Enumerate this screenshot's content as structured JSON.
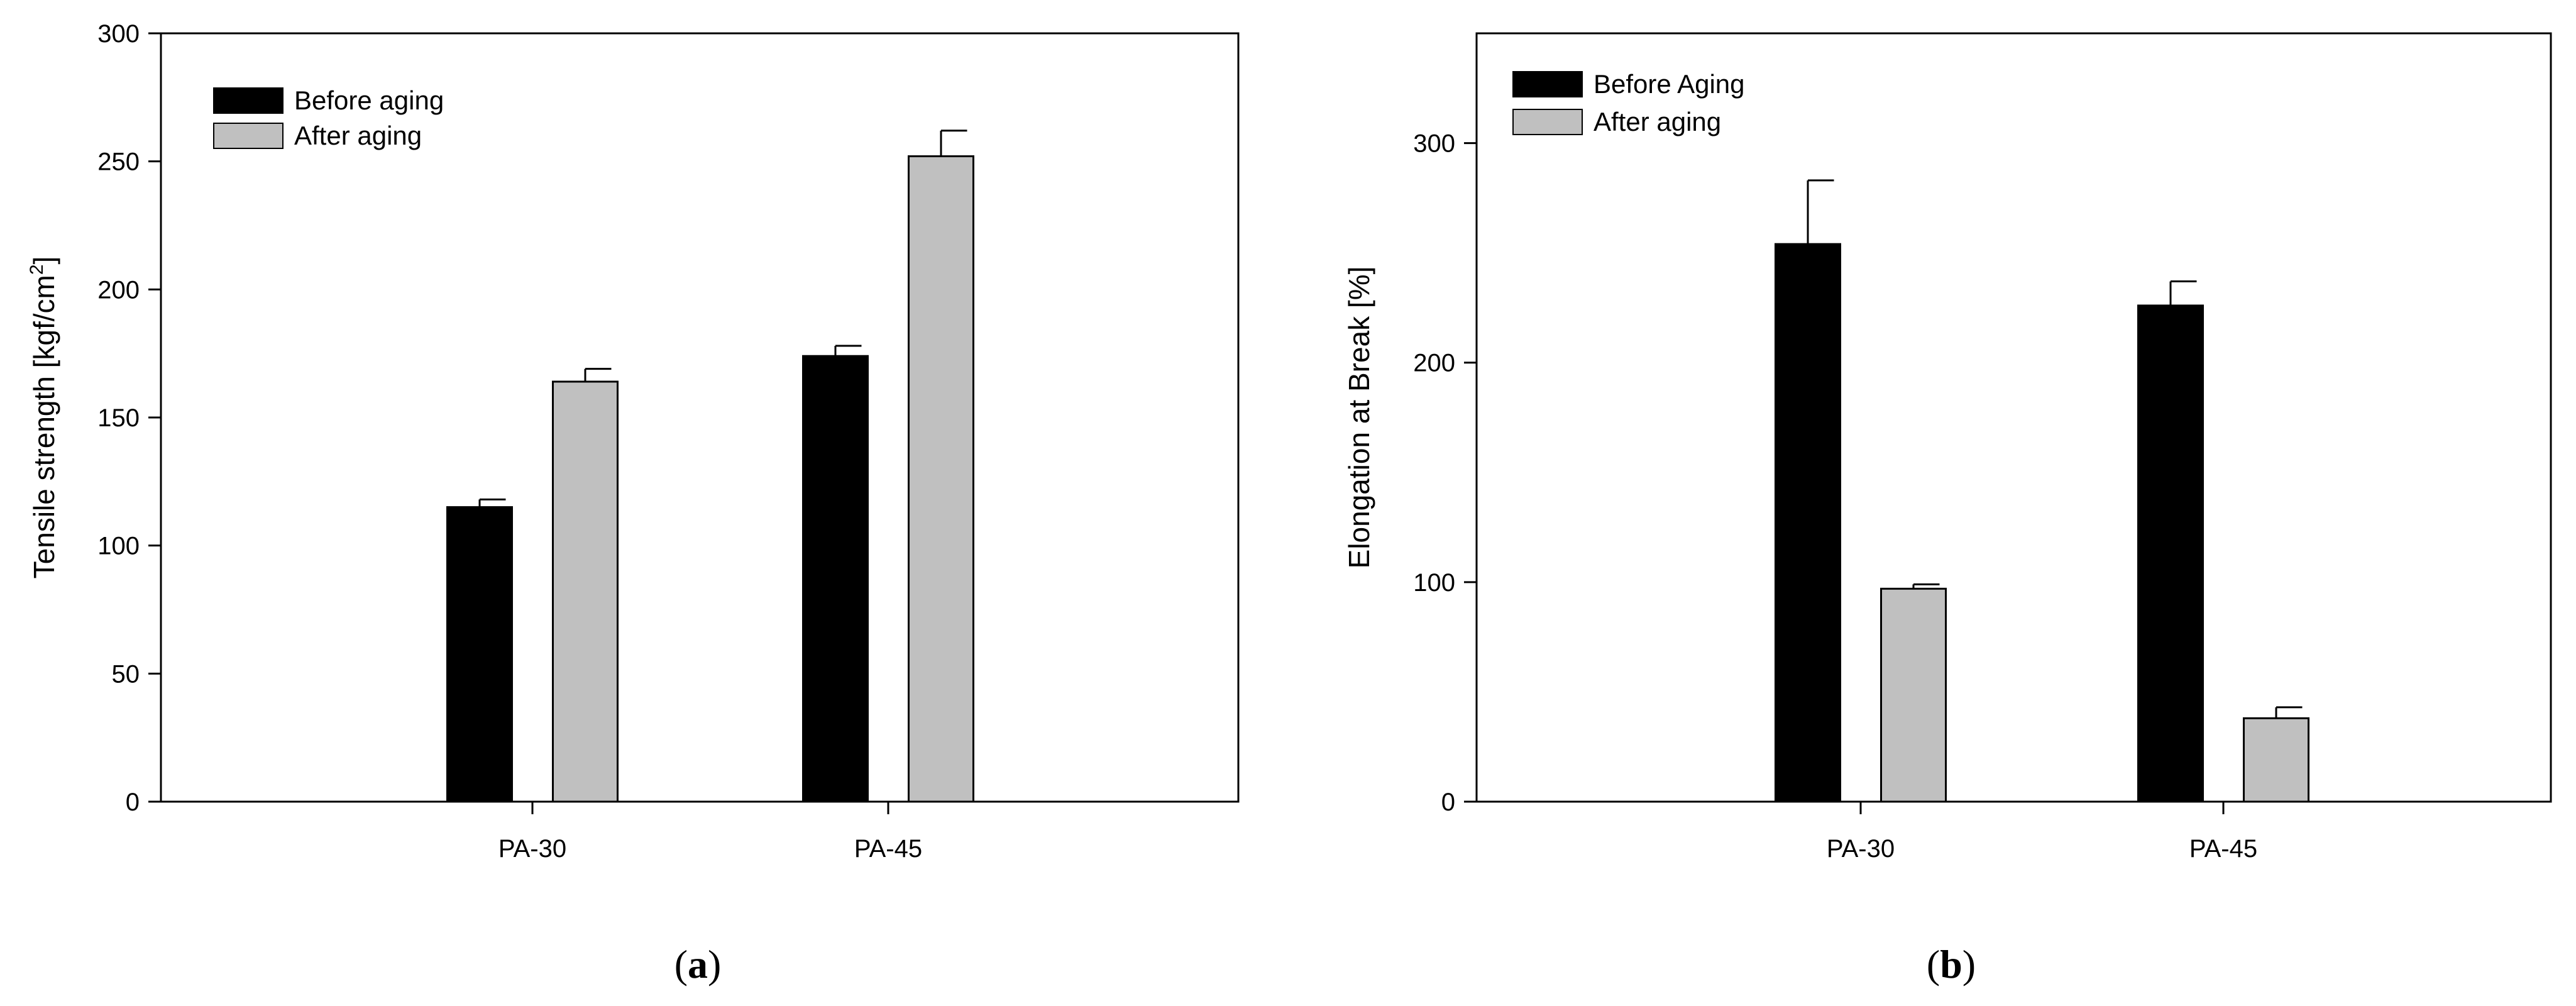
{
  "colors": {
    "before": "#000000",
    "after": "#c0c0c0",
    "axis": "#000000",
    "background": "#ffffff"
  },
  "chart_data": [
    {
      "type": "bar",
      "panel_label": "a",
      "categories": [
        "PA-30",
        "PA-45"
      ],
      "series": [
        {
          "name": "Before aging",
          "values": [
            115,
            174
          ],
          "errors": [
            3,
            4
          ],
          "color": "#000000"
        },
        {
          "name": "After aging",
          "values": [
            164,
            252
          ],
          "errors": [
            5,
            10
          ],
          "color": "#c0c0c0"
        }
      ],
      "title": "",
      "xlabel": "",
      "ylabel": "Tensile strength [kgf/cm",
      "ylabel_superscript": "2",
      "ylabel_suffix": "]",
      "ylim": [
        0,
        300
      ],
      "yticks": [
        0,
        50,
        100,
        150,
        200,
        250,
        300
      ],
      "grid": false,
      "legend": "top-left"
    },
    {
      "type": "bar",
      "panel_label": "b",
      "categories": [
        "PA-30",
        "PA-45"
      ],
      "series": [
        {
          "name": "Before Aging",
          "values": [
            254,
            226
          ],
          "errors": [
            29,
            11
          ],
          "color": "#000000"
        },
        {
          "name": "After aging",
          "values": [
            97,
            38
          ],
          "errors": [
            2,
            5
          ],
          "color": "#c0c0c0"
        }
      ],
      "title": "",
      "xlabel": "",
      "ylabel": "Elongation at Break [%]",
      "ylim": [
        0,
        350
      ],
      "yticks": [
        0,
        100,
        200,
        300
      ],
      "grid": false,
      "legend": "top-left"
    }
  ]
}
